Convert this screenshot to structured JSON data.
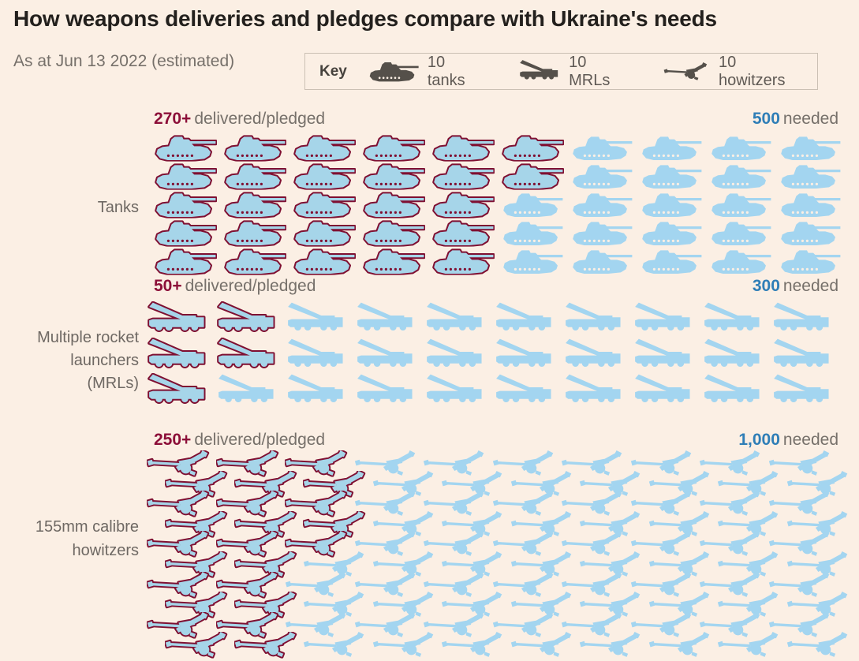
{
  "title": "How weapons deliveries and pledges compare with Ukraine's needs",
  "subtitle": "As at Jun 13 2022 (estimated)",
  "key": {
    "label": "Key",
    "items": [
      {
        "icon": "tank",
        "label": "10 tanks"
      },
      {
        "icon": "mrl",
        "label": "10 MRLs"
      },
      {
        "icon": "howitzer",
        "label": "10 howitzers"
      }
    ]
  },
  "unit_per_icon": 10,
  "sections": [
    {
      "id": "tanks",
      "label_lines": [
        "Tanks"
      ],
      "delivered_label": "270+",
      "delivered_suffix": "delivered/pledged",
      "needed_label": "500",
      "needed_suffix": "needed",
      "icon": "tank",
      "rows": 5,
      "cols": 10,
      "delivered_per_row": [
        6,
        6,
        5,
        5,
        5
      ],
      "staggered": false
    },
    {
      "id": "mrls",
      "label_lines": [
        "Multiple rocket",
        "launchers",
        "(MRLs)"
      ],
      "delivered_label": "50+",
      "delivered_suffix": "delivered/pledged",
      "needed_label": "300",
      "needed_suffix": "needed",
      "icon": "mrl",
      "rows": 3,
      "cols": 10,
      "delivered_per_row": [
        2,
        2,
        1
      ],
      "staggered": false
    },
    {
      "id": "howitzers",
      "label_lines": [
        "155mm calibre",
        "howitzers"
      ],
      "delivered_label": "250+",
      "delivered_suffix": "delivered/pledged",
      "needed_label": "1,000",
      "needed_suffix": "needed",
      "icon": "howitzer",
      "rows": 10,
      "cols": 10,
      "delivered_per_row": [
        3,
        3,
        3,
        3,
        3,
        2,
        2,
        2,
        2,
        2
      ],
      "staggered": true
    }
  ],
  "colors": {
    "background": "#FBEFE4",
    "title_color": "#23201D",
    "text_gray": "#76706A",
    "label_gray": "#6E6863",
    "claret": "#8C0F39",
    "claret_line": "#7F1032",
    "icon_fill": "#A6D5E9",
    "silhouette_blue": "#A3D5F0",
    "needed_blue": "#2F7EB7",
    "key_icon_gray": "#55504A",
    "key_text": "#5F5954",
    "key_label": "#46423D",
    "key_border": "#CBC0B4"
  },
  "chart_data": {
    "type": "bar",
    "variant": "pictogram",
    "title": "How weapons deliveries and pledges compare with Ukraine's needs",
    "subtitle": "As at Jun 13 2022 (estimated)",
    "unit_per_icon": 10,
    "categories": [
      "Tanks",
      "Multiple rocket launchers (MRLs)",
      "155mm calibre howitzers"
    ],
    "series": [
      {
        "name": "delivered/pledged",
        "values": [
          270,
          50,
          250
        ],
        "labels": [
          "270+",
          "50+",
          "250+"
        ],
        "color": "#8C0F39"
      },
      {
        "name": "needed",
        "values": [
          500,
          300,
          1000
        ],
        "labels": [
          "500",
          "300",
          "1,000"
        ],
        "color": "#2F7EB7"
      }
    ],
    "icons_shown": {
      "tanks": {
        "delivered": 27,
        "total": 50
      },
      "mrls": {
        "delivered": 5,
        "total": 30
      },
      "howitzers": {
        "delivered": 25,
        "total": 100
      }
    },
    "legend": [
      "10 tanks",
      "10 MRLs",
      "10 howitzers"
    ],
    "legend_position": "top"
  }
}
